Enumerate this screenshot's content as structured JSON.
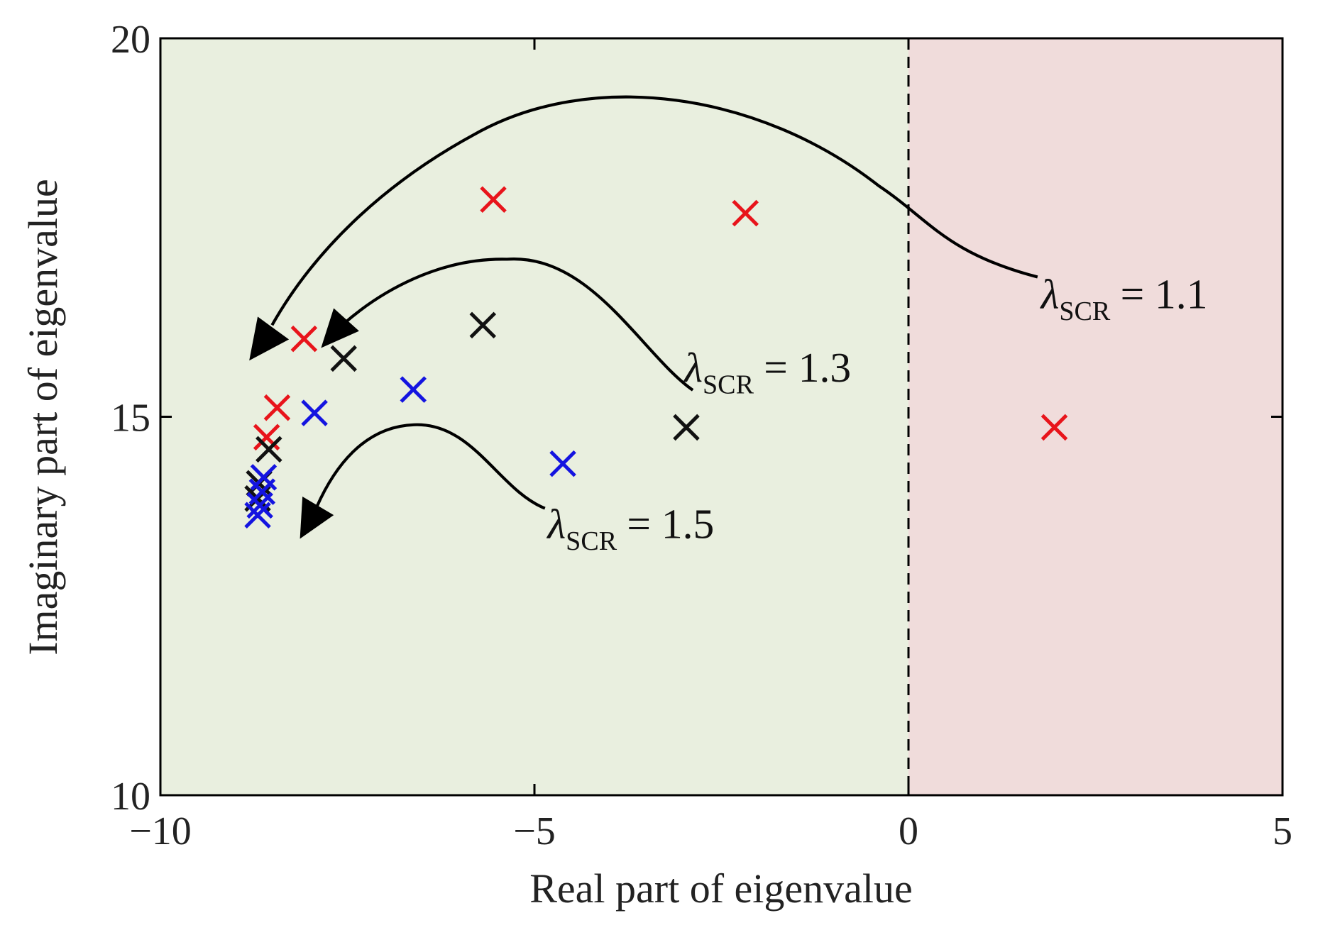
{
  "chart_data": {
    "type": "scatter",
    "x_label": "Real part of eigenvalue",
    "y_label": "Imaginary part of eigenvalue",
    "xlim": [
      -10,
      5
    ],
    "ylim": [
      10,
      20
    ],
    "xticks": [
      {
        "value": -10,
        "label": "−10"
      },
      {
        "value": -5,
        "label": "−5"
      },
      0,
      5
    ],
    "yticks": [
      10,
      15,
      20
    ],
    "regions": [
      {
        "from": -10,
        "to": 0,
        "color": "#e9efdf"
      },
      {
        "from": 0,
        "to": 5,
        "color": "#f0dcdb"
      }
    ],
    "boundary_x": 0,
    "series": [
      {
        "color": "#e8141b",
        "x": [
          -5.55,
          -2.18,
          1.95,
          -8.08,
          -8.44,
          -8.58
        ],
        "values": [
          17.87,
          17.69,
          14.86,
          16.03,
          15.12,
          14.73
        ]
      },
      {
        "color": "#111111",
        "x": [
          -5.69,
          -7.55,
          -2.97,
          -8.55,
          -8.68,
          -8.7
        ],
        "values": [
          16.21,
          15.77,
          14.86,
          14.57,
          14.12,
          13.92
        ]
      },
      {
        "color": "#1414e0",
        "x": [
          -6.62,
          -7.94,
          -4.62,
          -8.62,
          -8.64,
          -8.67,
          -8.7
        ],
        "values": [
          15.36,
          15.05,
          14.38,
          14.2,
          14.01,
          13.83,
          13.7
        ]
      }
    ],
    "annotations": [
      {
        "symbol": "λ",
        "subscript": "SCR",
        "text": "= 1.1"
      },
      {
        "symbol": "λ",
        "subscript": "SCR",
        "text": "= 1.3"
      },
      {
        "symbol": "λ",
        "subscript": "SCR",
        "text": "= 1.5"
      }
    ]
  }
}
